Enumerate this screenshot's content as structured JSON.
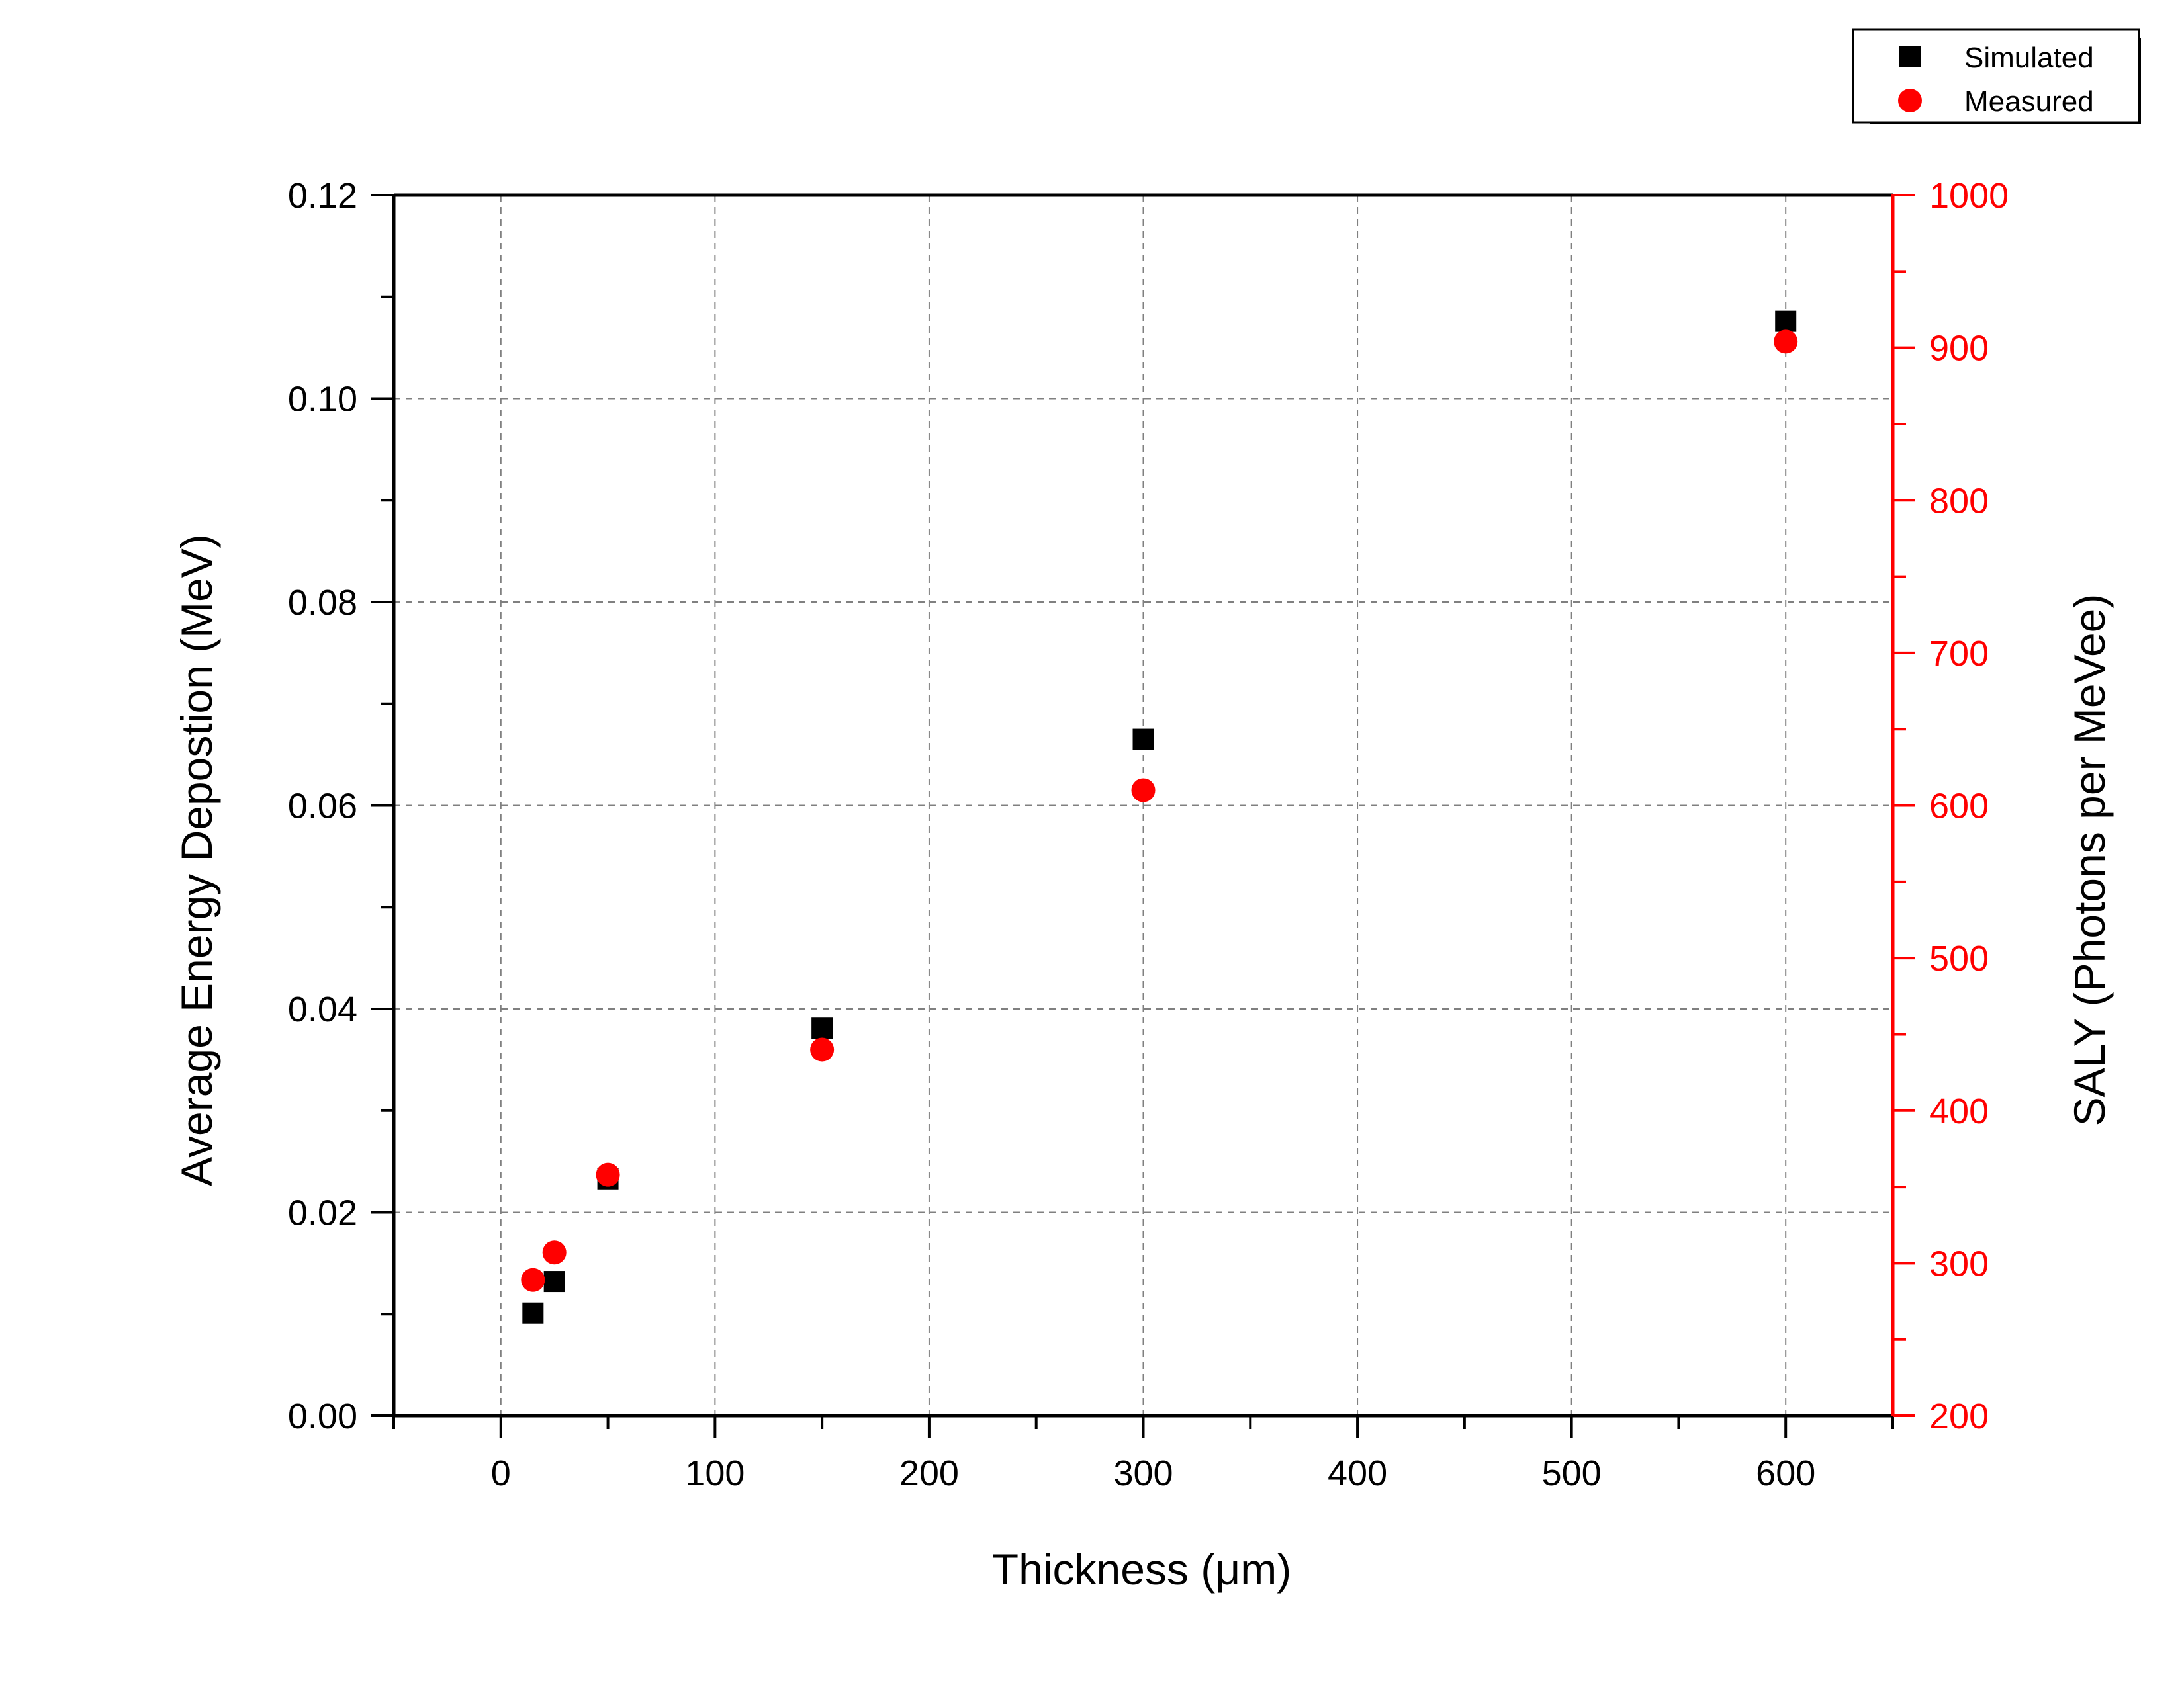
{
  "chart_data": {
    "type": "scatter",
    "title": "",
    "xlabel": "Thickness (μm)",
    "ylabel_left": "Average Energy Depostion (MeV)",
    "ylabel_right": "SALY (Photons per MeVee)",
    "xlim": [
      -50,
      650
    ],
    "ylim_left": [
      0,
      0.12
    ],
    "ylim_right": [
      200,
      1000
    ],
    "x_ticks": [
      "0",
      "100",
      "200",
      "300",
      "400",
      "500",
      "600"
    ],
    "y_ticks_left": [
      "0.00",
      "0.02",
      "0.04",
      "0.06",
      "0.08",
      "0.10",
      "0.12"
    ],
    "y_ticks_right": [
      "200",
      "300",
      "400",
      "500",
      "600",
      "700",
      "800",
      "900",
      "1000"
    ],
    "grid": true,
    "legend_position": "top-right",
    "series": [
      {
        "name": "Simulated",
        "axis": "left",
        "marker": "square",
        "color": "#000000",
        "x": [
          15,
          25,
          50,
          150,
          300,
          600
        ],
        "y": [
          0.0101,
          0.0132,
          0.0233,
          0.0381,
          0.0665,
          0.1076
        ]
      },
      {
        "name": "Measured",
        "axis": "right",
        "marker": "circle",
        "color": "#ff0000",
        "x": [
          15,
          25,
          50,
          150,
          300,
          600
        ],
        "y": [
          289,
          307,
          358,
          440,
          610,
          904
        ]
      }
    ],
    "colors": {
      "left_axis": "#000000",
      "right_axis": "#ff0000",
      "grid": "#808080"
    }
  }
}
